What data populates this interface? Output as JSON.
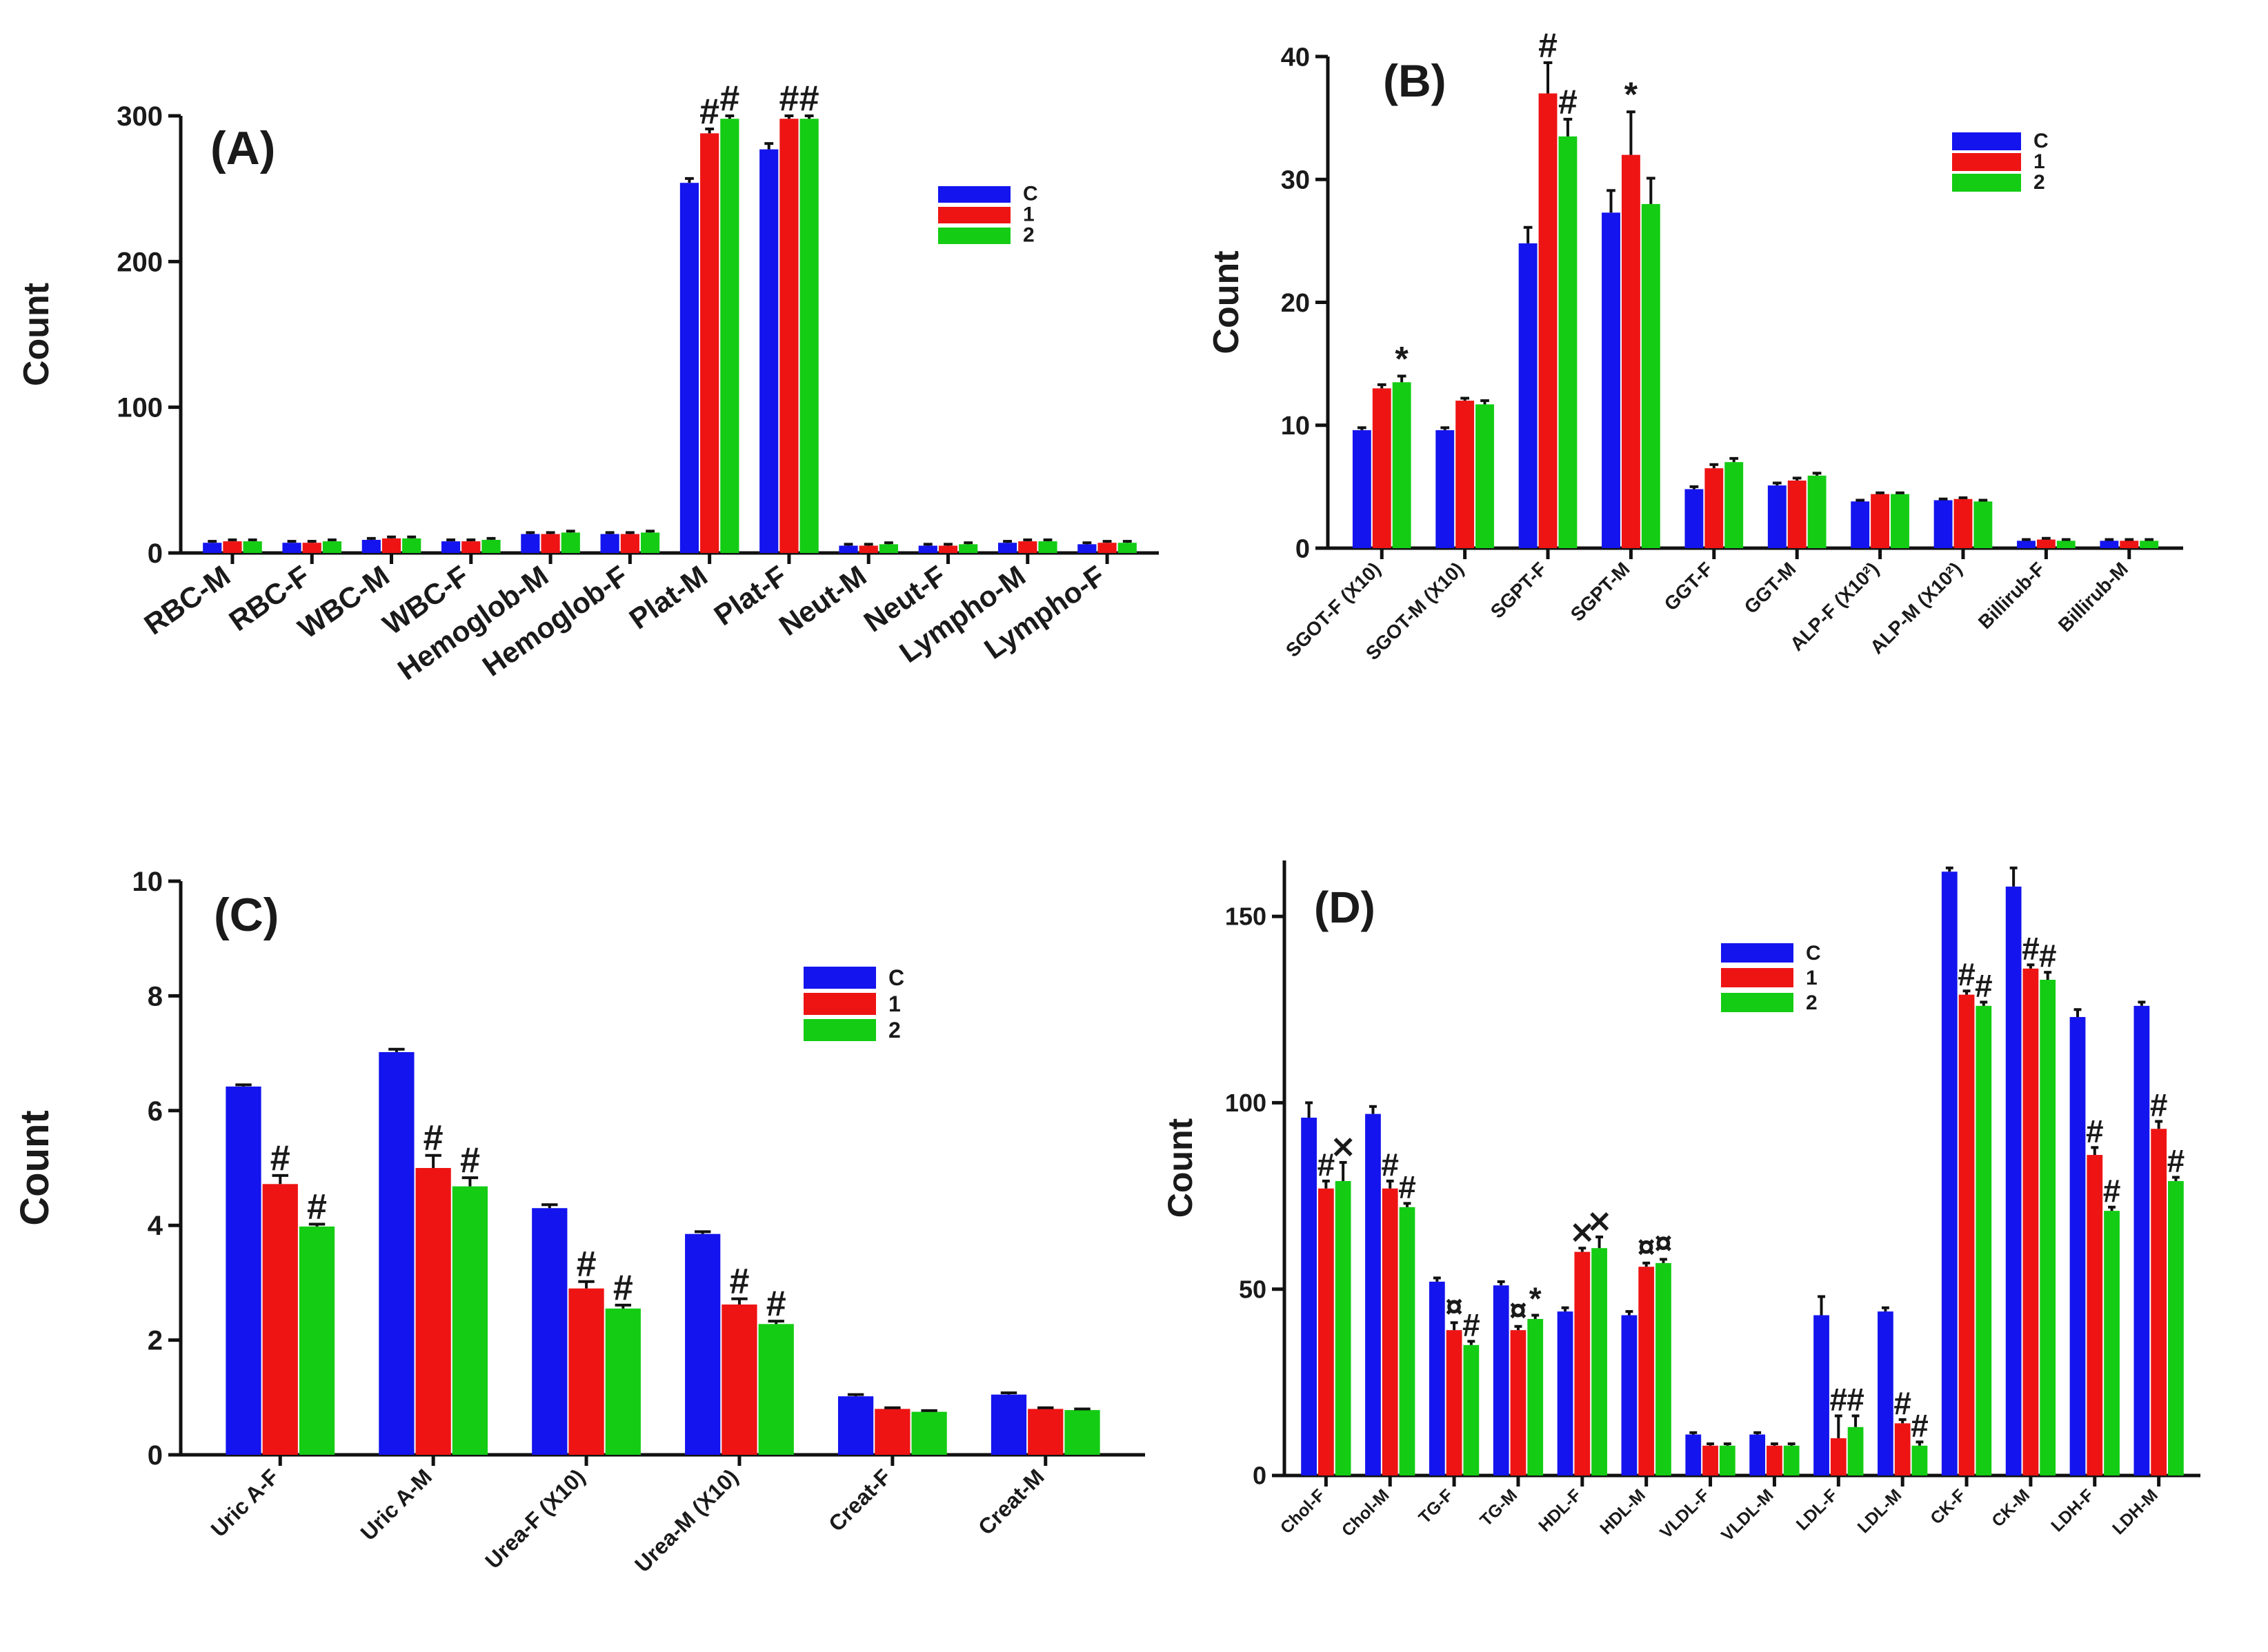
{
  "figure": {
    "colors": {
      "C": "#1414ee",
      "1": "#ee1414",
      "2": "#14cc14"
    }
  },
  "chart_data": [
    {
      "panel": "A",
      "type": "bar",
      "title": "(A)",
      "xlabel": "",
      "ylabel": "Count",
      "ylim": [
        0,
        300
      ],
      "yticks": [
        0,
        100,
        200,
        300
      ],
      "legend": [
        "C",
        "1",
        "2"
      ],
      "legend_position": "top-right",
      "categories": [
        "RBC-M",
        "RBC-F",
        "WBC-M",
        "WBC-F",
        "Hemoglob-M",
        "Hemoglob-F",
        "Plat-M",
        "Plat-F",
        "Neut-M",
        "Neut-F",
        "Lympho-M",
        "Lympho-F"
      ],
      "series": [
        {
          "name": "C",
          "values": [
            7,
            7,
            9,
            8,
            13,
            13,
            254,
            277,
            5,
            5,
            7,
            6
          ],
          "errors": [
            1,
            1,
            1,
            1,
            1,
            1,
            3,
            4,
            1,
            1,
            1,
            1
          ]
        },
        {
          "name": "1",
          "values": [
            8,
            7,
            10,
            8,
            13,
            13,
            288,
            298,
            5,
            5,
            8,
            7
          ],
          "errors": [
            1,
            1,
            1,
            1,
            1,
            1,
            3,
            2,
            1,
            1,
            1,
            1
          ]
        },
        {
          "name": "2",
          "values": [
            8,
            8,
            10,
            9,
            14,
            14,
            298,
            298,
            6,
            6,
            8,
            7
          ],
          "errors": [
            1,
            1,
            1,
            1,
            1,
            1,
            2,
            2,
            1,
            1,
            1,
            1
          ]
        }
      ],
      "annotations": [
        {
          "category": "Plat-M",
          "series": "1",
          "text": "#"
        },
        {
          "category": "Plat-M",
          "series": "2",
          "text": "#"
        },
        {
          "category": "Plat-F",
          "series": "1",
          "text": "#"
        },
        {
          "category": "Plat-F",
          "series": "2",
          "text": "#"
        }
      ]
    },
    {
      "panel": "B",
      "type": "bar",
      "title": "(B)",
      "xlabel": "",
      "ylabel": "Count",
      "ylim": [
        0,
        40
      ],
      "yticks": [
        0,
        10,
        20,
        30,
        40
      ],
      "legend": [
        "C",
        "1",
        "2"
      ],
      "legend_position": "top-right",
      "categories": [
        "SGOT-F (X10)",
        "SGOT-M (X10)",
        "SGPT-F",
        "SGPT-M",
        "GGT-F",
        "GGT-M",
        "ALP-F (X10²)",
        "ALP-M (X10²)",
        "Billirub-F",
        "Billirub-M"
      ],
      "series": [
        {
          "name": "C",
          "values": [
            9.6,
            9.6,
            24.8,
            27.3,
            4.8,
            5.1,
            3.8,
            3.9,
            0.6,
            0.6
          ],
          "errors": [
            0.2,
            0.2,
            1.3,
            1.8,
            0.2,
            0.2,
            0.1,
            0.1,
            0.1,
            0.1
          ]
        },
        {
          "name": "1",
          "values": [
            13.0,
            12.0,
            37.0,
            32.0,
            6.5,
            5.5,
            4.4,
            4.0,
            0.7,
            0.6
          ],
          "errors": [
            0.3,
            0.2,
            2.5,
            3.5,
            0.3,
            0.2,
            0.1,
            0.1,
            0.1,
            0.1
          ]
        },
        {
          "name": "2",
          "values": [
            13.5,
            11.7,
            33.5,
            28.0,
            7.0,
            5.9,
            4.4,
            3.8,
            0.6,
            0.6
          ],
          "errors": [
            0.5,
            0.3,
            1.4,
            2.1,
            0.3,
            0.2,
            0.1,
            0.1,
            0.1,
            0.1
          ]
        }
      ],
      "annotations": [
        {
          "category": "SGOT-F (X10)",
          "series": "2",
          "text": "*"
        },
        {
          "category": "SGPT-F",
          "series": "1",
          "text": "#"
        },
        {
          "category": "SGPT-F",
          "series": "2",
          "text": "#"
        },
        {
          "category": "SGPT-M",
          "series": "1",
          "text": "*"
        }
      ]
    },
    {
      "panel": "C",
      "type": "bar",
      "title": "(C)",
      "xlabel": "",
      "ylabel": "Count",
      "ylim": [
        0,
        10
      ],
      "yticks": [
        0,
        2,
        4,
        6,
        8,
        10
      ],
      "legend": [
        "C",
        "1",
        "2"
      ],
      "legend_position": "top-right",
      "categories": [
        "Uric A-F",
        "Uric A-M",
        "Urea-F (X10)",
        "Urea-M (X10)",
        "Creat-F",
        "Creat-M"
      ],
      "series": [
        {
          "name": "C",
          "values": [
            6.42,
            7.02,
            4.3,
            3.85,
            1.02,
            1.05
          ],
          "errors": [
            0.03,
            0.05,
            0.06,
            0.04,
            0.03,
            0.03
          ]
        },
        {
          "name": "1",
          "values": [
            4.72,
            5.0,
            2.9,
            2.62,
            0.8,
            0.8
          ],
          "errors": [
            0.15,
            0.22,
            0.12,
            0.1,
            0.02,
            0.02
          ]
        },
        {
          "name": "2",
          "values": [
            3.98,
            4.68,
            2.55,
            2.28,
            0.75,
            0.78
          ],
          "errors": [
            0.04,
            0.15,
            0.06,
            0.05,
            0.02,
            0.02
          ]
        }
      ],
      "annotations": [
        {
          "category": "Uric A-F",
          "series": "1",
          "text": "#"
        },
        {
          "category": "Uric A-F",
          "series": "2",
          "text": "#"
        },
        {
          "category": "Uric A-M",
          "series": "1",
          "text": "#"
        },
        {
          "category": "Uric A-M",
          "series": "2",
          "text": "#"
        },
        {
          "category": "Urea-F (X10)",
          "series": "1",
          "text": "#"
        },
        {
          "category": "Urea-F (X10)",
          "series": "2",
          "text": "#"
        },
        {
          "category": "Urea-M (X10)",
          "series": "1",
          "text": "#"
        },
        {
          "category": "Urea-M (X10)",
          "series": "2",
          "text": "#"
        }
      ]
    },
    {
      "panel": "D",
      "type": "bar",
      "title": "(D)",
      "xlabel": "",
      "ylabel": "Count",
      "ylim": [
        0,
        165
      ],
      "yticks": [
        0,
        50,
        100,
        150
      ],
      "legend": [
        "C",
        "1",
        "2"
      ],
      "legend_position": "top-center",
      "categories": [
        "Chol-F",
        "Chol-M",
        "TG-F",
        "TG-M",
        "HDL-F",
        "HDL-M",
        "VLDL-F",
        "VLDL-M",
        "LDL-F",
        "LDL-M",
        "CK-F",
        "CK-M",
        "LDH-F",
        "LDH-M"
      ],
      "series": [
        {
          "name": "C",
          "values": [
            96,
            97,
            52,
            51,
            44,
            43,
            11,
            11,
            43,
            44,
            162,
            158,
            123,
            126
          ],
          "errors": [
            4,
            2,
            1,
            1,
            1,
            1,
            0.5,
            0.5,
            5,
            1,
            1,
            5,
            2,
            1
          ]
        },
        {
          "name": "1",
          "values": [
            77,
            77,
            39,
            39,
            60,
            56,
            8,
            8,
            10,
            14,
            129,
            136,
            86,
            93
          ],
          "errors": [
            2,
            2,
            2,
            1,
            1,
            1,
            0.5,
            0.5,
            6,
            1,
            1,
            1,
            2,
            2
          ]
        },
        {
          "name": "2",
          "values": [
            79,
            72,
            35,
            42,
            61,
            57,
            8,
            8,
            13,
            8,
            126,
            133,
            71,
            79
          ],
          "errors": [
            5,
            1,
            1,
            1,
            3,
            1,
            0.5,
            0.5,
            3,
            1,
            1,
            2,
            1,
            1
          ]
        }
      ],
      "annotations": [
        {
          "category": "Chol-F",
          "series": "1",
          "text": "#"
        },
        {
          "category": "Chol-F",
          "series": "2",
          "text": "⨯"
        },
        {
          "category": "Chol-M",
          "series": "1",
          "text": "#"
        },
        {
          "category": "Chol-M",
          "series": "2",
          "text": "#"
        },
        {
          "category": "TG-F",
          "series": "1",
          "text": "¤"
        },
        {
          "category": "TG-F",
          "series": "2",
          "text": "#"
        },
        {
          "category": "TG-M",
          "series": "1",
          "text": "¤"
        },
        {
          "category": "TG-M",
          "series": "2",
          "text": "*"
        },
        {
          "category": "HDL-F",
          "series": "1",
          "text": "⨯"
        },
        {
          "category": "HDL-F",
          "series": "2",
          "text": "⨯"
        },
        {
          "category": "HDL-M",
          "series": "1",
          "text": "¤"
        },
        {
          "category": "HDL-M",
          "series": "2",
          "text": "¤"
        },
        {
          "category": "LDL-F",
          "series": "1",
          "text": "#"
        },
        {
          "category": "LDL-F",
          "series": "2",
          "text": "#"
        },
        {
          "category": "LDL-M",
          "series": "1",
          "text": "#"
        },
        {
          "category": "LDL-M",
          "series": "2",
          "text": "#"
        },
        {
          "category": "CK-F",
          "series": "1",
          "text": "#"
        },
        {
          "category": "CK-F",
          "series": "2",
          "text": "#"
        },
        {
          "category": "CK-M",
          "series": "1",
          "text": "#"
        },
        {
          "category": "CK-M",
          "series": "2",
          "text": "#"
        },
        {
          "category": "LDH-F",
          "series": "1",
          "text": "#"
        },
        {
          "category": "LDH-F",
          "series": "2",
          "text": "#"
        },
        {
          "category": "LDH-M",
          "series": "1",
          "text": "#"
        },
        {
          "category": "LDH-M",
          "series": "2",
          "text": "#"
        }
      ]
    }
  ]
}
